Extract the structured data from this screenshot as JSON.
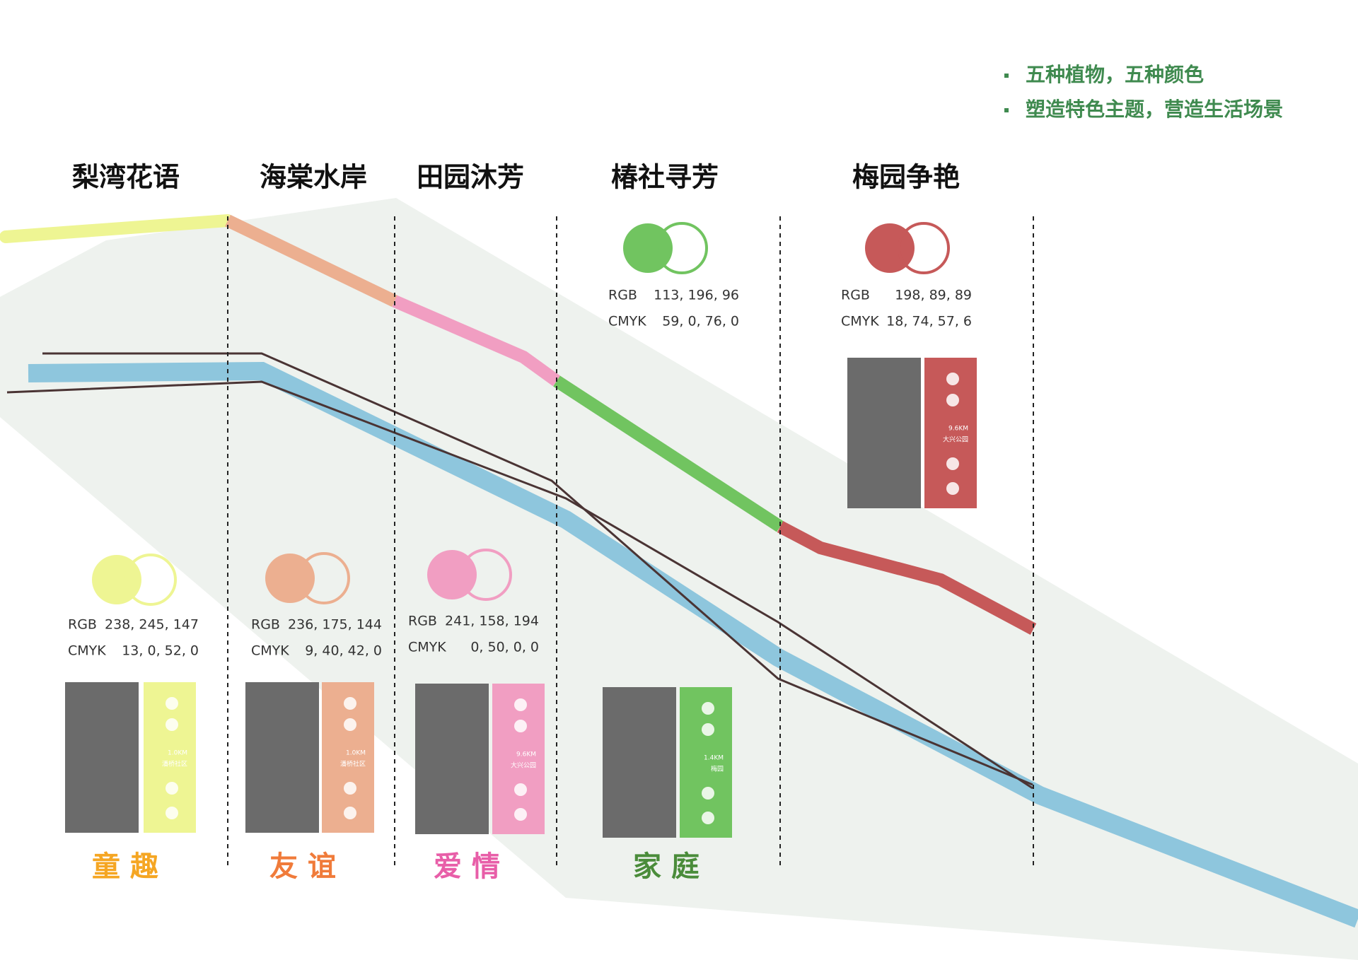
{
  "header": {
    "bullets": [
      "五种植物，五种颜色",
      "塑造特色主题，营造生活场景"
    ]
  },
  "labels": {
    "rgb": "RGB",
    "cmyk": "CMYK"
  },
  "zones": [
    {
      "name": "梨湾花语",
      "color": "#eef593",
      "rgb": "238, 245, 147",
      "cmyk": "13, 0, 52, 0",
      "km": "1.0KM",
      "place": "潘桥社区",
      "theme": "童趣",
      "theme_color": "#f5a623"
    },
    {
      "name": "海棠水岸",
      "color": "#ecaf90",
      "rgb": "236, 175, 144",
      "cmyk": "9, 40, 42, 0",
      "km": "1.0KM",
      "place": "潘桥社区",
      "theme": "友谊",
      "theme_color": "#f07b3a"
    },
    {
      "name": "田园沐芳",
      "color": "#f19ec2",
      "rgb": "241, 158, 194",
      "cmyk": "0, 50, 0, 0",
      "km": "9.6KM",
      "place": "大兴公园",
      "theme": "爱情",
      "theme_color": "#e85ea8"
    },
    {
      "name": "椿社寻芳",
      "color": "#71c460",
      "rgb": "113, 196, 96",
      "cmyk": "59, 0, 76, 0",
      "km": "1.4KM",
      "place": "梅园",
      "theme": "家庭",
      "theme_color": "#4a8c3a"
    },
    {
      "name": "梅园争艳",
      "color": "#c65959",
      "rgb": "198, 89, 89",
      "cmyk": "18, 74, 57, 6",
      "km": "9.6KM",
      "place": "大兴公园"
    }
  ]
}
